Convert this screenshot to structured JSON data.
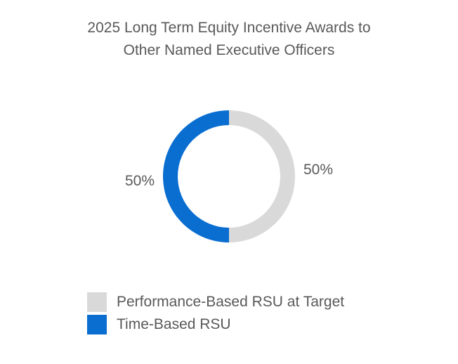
{
  "chart_data": {
    "type": "pie",
    "variant": "donut",
    "title_lines": [
      "2025 Long Term Equity Incentive Awards to",
      "Other Named Executive Officers"
    ],
    "categories": [
      "Performance-Based RSU at Target",
      "Time-Based RSU"
    ],
    "values": [
      50,
      50
    ],
    "data_labels": [
      "50%",
      "50%"
    ],
    "colors": [
      "#d9d9d9",
      "#0a6ed1"
    ],
    "legend_placement": "bottom",
    "grid": false
  }
}
